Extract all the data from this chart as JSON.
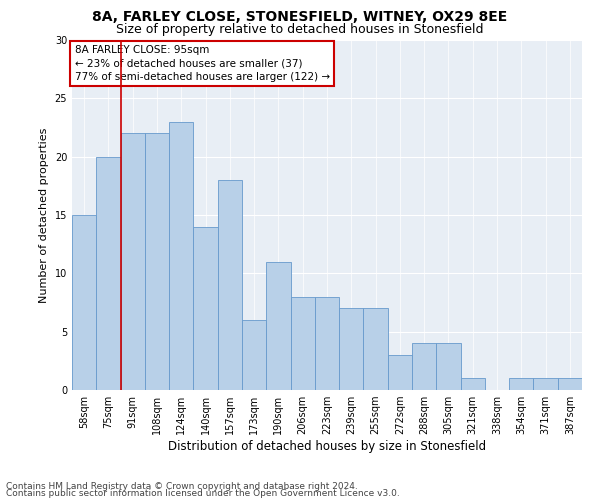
{
  "title1": "8A, FARLEY CLOSE, STONESFIELD, WITNEY, OX29 8EE",
  "title2": "Size of property relative to detached houses in Stonesfield",
  "xlabel": "Distribution of detached houses by size in Stonesfield",
  "ylabel": "Number of detached properties",
  "categories": [
    "58sqm",
    "75sqm",
    "91sqm",
    "108sqm",
    "124sqm",
    "140sqm",
    "157sqm",
    "173sqm",
    "190sqm",
    "206sqm",
    "223sqm",
    "239sqm",
    "255sqm",
    "272sqm",
    "288sqm",
    "305sqm",
    "321sqm",
    "338sqm",
    "354sqm",
    "371sqm",
    "387sqm"
  ],
  "values": [
    15,
    20,
    22,
    22,
    23,
    14,
    18,
    6,
    11,
    8,
    8,
    7,
    7,
    3,
    4,
    4,
    1,
    0,
    1,
    1,
    1
  ],
  "bar_color": "#b8d0e8",
  "bar_edge_color": "#6699cc",
  "bg_color": "#e8eef5",
  "vline_x_index": 2,
  "vline_color": "#cc0000",
  "annotation_text": "8A FARLEY CLOSE: 95sqm\n← 23% of detached houses are smaller (37)\n77% of semi-detached houses are larger (122) →",
  "annotation_box_color": "#cc0000",
  "ylim": [
    0,
    30
  ],
  "yticks": [
    0,
    5,
    10,
    15,
    20,
    25,
    30
  ],
  "footer1": "Contains HM Land Registry data © Crown copyright and database right 2024.",
  "footer2": "Contains public sector information licensed under the Open Government Licence v3.0.",
  "title1_fontsize": 10,
  "title2_fontsize": 9,
  "xlabel_fontsize": 8.5,
  "ylabel_fontsize": 8,
  "tick_fontsize": 7,
  "annotation_fontsize": 7.5,
  "footer_fontsize": 6.5
}
